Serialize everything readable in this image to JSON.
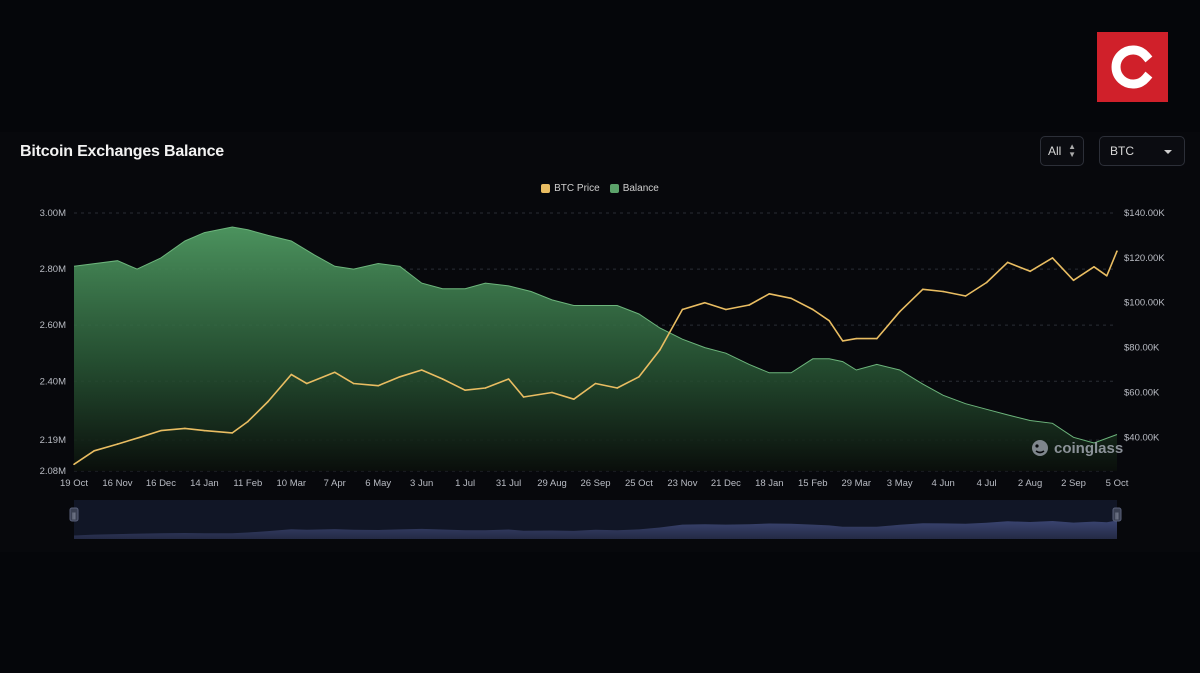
{
  "brand": {
    "logo_letter": "C",
    "logo_color": "#d0202a"
  },
  "header": {
    "title": "Bitcoin Exchanges Balance",
    "range_value": "All",
    "coin_value": "BTC"
  },
  "watermark": {
    "text": "coinglass",
    "icon": "coinglass-logo-icon"
  },
  "colors": {
    "price": "#e9bd62",
    "balance": "#5ca36b",
    "navigator": "#2a3150"
  },
  "chart_data": {
    "type": "area",
    "title": "Bitcoin Exchanges Balance",
    "legend": {
      "position": "top-center",
      "entries": [
        "BTC Price",
        "Balance"
      ]
    },
    "grid": true,
    "x_ticks": [
      "19 Oct",
      "16 Nov",
      "16 Dec",
      "14 Jan",
      "11 Feb",
      "10 Mar",
      "7 Apr",
      "6 May",
      "3 Jun",
      "1 Jul",
      "31 Jul",
      "29 Aug",
      "26 Sep",
      "25 Oct",
      "23 Nov",
      "21 Dec",
      "18 Jan",
      "15 Feb",
      "29 Mar",
      "3 May",
      "4 Jun",
      "4 Jul",
      "2 Aug",
      "2 Sep",
      "5 Oct"
    ],
    "y_left_ticks": [
      "3.00M",
      "2.80M",
      "2.60M",
      "2.40M",
      "2.19M",
      "2.08M"
    ],
    "y_left_tick_values": [
      3.0,
      2.8,
      2.6,
      2.4,
      2.19,
      2.08
    ],
    "y_left_range": [
      2.08,
      3.0
    ],
    "y_right_ticks": [
      "$140.00K",
      "$120.00K",
      "$100.00K",
      "$80.00K",
      "$60.00K",
      "$40.00K"
    ],
    "y_right_tick_values": [
      140,
      120,
      100,
      80,
      60,
      40
    ],
    "y_right_range": [
      25,
      140
    ],
    "series": [
      {
        "name": "Balance",
        "axis": "left",
        "unit": "M BTC",
        "points": [
          [
            "19 Oct",
            2.81
          ],
          [
            "16 Nov",
            2.83
          ],
          [
            "30 Nov",
            2.8
          ],
          [
            "16 Dec",
            2.84
          ],
          [
            "1 Jan",
            2.9
          ],
          [
            "14 Jan",
            2.93
          ],
          [
            "1 Feb",
            2.95
          ],
          [
            "11 Feb",
            2.94
          ],
          [
            "25 Feb",
            2.92
          ],
          [
            "10 Mar",
            2.9
          ],
          [
            "25 Mar",
            2.85
          ],
          [
            "7 Apr",
            2.81
          ],
          [
            "20 Apr",
            2.8
          ],
          [
            "6 May",
            2.82
          ],
          [
            "20 May",
            2.81
          ],
          [
            "3 Jun",
            2.75
          ],
          [
            "17 Jun",
            2.73
          ],
          [
            "1 Jul",
            2.73
          ],
          [
            "15 Jul",
            2.75
          ],
          [
            "31 Jul",
            2.74
          ],
          [
            "15 Aug",
            2.72
          ],
          [
            "29 Aug",
            2.69
          ],
          [
            "12 Sep",
            2.67
          ],
          [
            "26 Sep",
            2.67
          ],
          [
            "10 Oct",
            2.67
          ],
          [
            "25 Oct",
            2.64
          ],
          [
            "8 Nov",
            2.59
          ],
          [
            "23 Nov",
            2.55
          ],
          [
            "7 Dec",
            2.52
          ],
          [
            "21 Dec",
            2.5
          ],
          [
            "5 Jan",
            2.46
          ],
          [
            "18 Jan",
            2.43
          ],
          [
            "1 Feb",
            2.43
          ],
          [
            "15 Feb",
            2.48
          ],
          [
            "1 Mar",
            2.48
          ],
          [
            "15 Mar",
            2.47
          ],
          [
            "29 Mar",
            2.44
          ],
          [
            "15 Apr",
            2.46
          ],
          [
            "3 May",
            2.44
          ],
          [
            "20 May",
            2.39
          ],
          [
            "4 Jun",
            2.35
          ],
          [
            "20 Jun",
            2.32
          ],
          [
            "4 Jul",
            2.3
          ],
          [
            "18 Jul",
            2.28
          ],
          [
            "2 Aug",
            2.26
          ],
          [
            "18 Aug",
            2.25
          ],
          [
            "2 Sep",
            2.2
          ],
          [
            "18 Sep",
            2.18
          ],
          [
            "5 Oct",
            2.21
          ]
        ]
      },
      {
        "name": "BTC Price",
        "axis": "right",
        "unit": "USD K",
        "points": [
          [
            "19 Oct",
            28
          ],
          [
            "1 Nov",
            34
          ],
          [
            "16 Nov",
            37
          ],
          [
            "1 Dec",
            40
          ],
          [
            "16 Dec",
            43
          ],
          [
            "1 Jan",
            44
          ],
          [
            "14 Jan",
            43
          ],
          [
            "1 Feb",
            42
          ],
          [
            "11 Feb",
            47
          ],
          [
            "25 Feb",
            56
          ],
          [
            "10 Mar",
            68
          ],
          [
            "20 Mar",
            64
          ],
          [
            "7 Apr",
            69
          ],
          [
            "20 Apr",
            64
          ],
          [
            "6 May",
            63
          ],
          [
            "20 May",
            67
          ],
          [
            "3 Jun",
            70
          ],
          [
            "17 Jun",
            66
          ],
          [
            "1 Jul",
            61
          ],
          [
            "15 Jul",
            62
          ],
          [
            "31 Jul",
            66
          ],
          [
            "10 Aug",
            58
          ],
          [
            "29 Aug",
            60
          ],
          [
            "12 Sep",
            57
          ],
          [
            "26 Sep",
            64
          ],
          [
            "10 Oct",
            62
          ],
          [
            "25 Oct",
            67
          ],
          [
            "8 Nov",
            79
          ],
          [
            "23 Nov",
            97
          ],
          [
            "7 Dec",
            100
          ],
          [
            "21 Dec",
            97
          ],
          [
            "5 Jan",
            99
          ],
          [
            "18 Jan",
            104
          ],
          [
            "1 Feb",
            102
          ],
          [
            "15 Feb",
            97
          ],
          [
            "1 Mar",
            92
          ],
          [
            "15 Mar",
            83
          ],
          [
            "29 Mar",
            84
          ],
          [
            "15 Apr",
            84
          ],
          [
            "3 May",
            96
          ],
          [
            "20 May",
            106
          ],
          [
            "4 Jun",
            105
          ],
          [
            "20 Jun",
            103
          ],
          [
            "4 Jul",
            109
          ],
          [
            "18 Jul",
            118
          ],
          [
            "2 Aug",
            114
          ],
          [
            "18 Aug",
            120
          ],
          [
            "2 Sep",
            110
          ],
          [
            "18 Sep",
            116
          ],
          [
            "28 Sep",
            112
          ],
          [
            "5 Oct",
            123
          ]
        ]
      }
    ]
  }
}
